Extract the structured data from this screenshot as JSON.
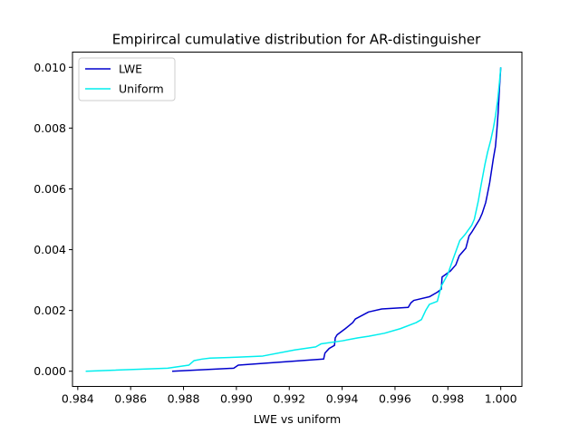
{
  "chart_data": {
    "type": "line",
    "title": "Empirircal cumulative distribution for AR-distinguisher",
    "xlabel": "LWE vs uniform",
    "ylabel": "",
    "xlim": [
      0.9838,
      1.0008
    ],
    "ylim": [
      -0.0005,
      0.0105
    ],
    "xticks": [
      "0.984",
      "0.986",
      "0.988",
      "0.990",
      "0.992",
      "0.994",
      "0.996",
      "0.998",
      "1.000"
    ],
    "xtick_values": [
      0.984,
      0.986,
      0.988,
      0.99,
      0.992,
      0.994,
      0.996,
      0.998,
      1.0
    ],
    "yticks": [
      "0.000",
      "0.002",
      "0.004",
      "0.006",
      "0.008",
      "0.010"
    ],
    "ytick_values": [
      0.0,
      0.002,
      0.004,
      0.006,
      0.008,
      0.01
    ],
    "grid": false,
    "legend_position": "top-left",
    "series": [
      {
        "name": "LWE",
        "color": "#0000cd",
        "x": [
          0.98757,
          0.9899,
          0.99007,
          0.9933,
          0.99335,
          0.99351,
          0.99371,
          0.99374,
          0.99381,
          0.99412,
          0.9944,
          0.9945,
          0.995,
          0.9955,
          0.9965,
          0.9966,
          0.99671,
          0.9973,
          0.9976,
          0.99775,
          0.99778,
          0.9981,
          0.9983,
          0.99843,
          0.99868,
          0.9988,
          0.99892,
          0.9992,
          0.9993,
          0.99943,
          0.9995,
          0.99958,
          0.99965,
          0.99972,
          0.9998,
          0.99985,
          0.9999,
          0.99995,
          1.0
        ],
        "y": [
          0.0,
          0.0001,
          0.0002,
          0.0004,
          0.0006,
          0.00075,
          0.00085,
          0.0011,
          0.0012,
          0.0014,
          0.0016,
          0.00172,
          0.00195,
          0.00205,
          0.0021,
          0.00225,
          0.00233,
          0.00245,
          0.0026,
          0.0027,
          0.0031,
          0.0033,
          0.0035,
          0.0038,
          0.00405,
          0.00445,
          0.0046,
          0.005,
          0.0052,
          0.00555,
          0.00585,
          0.0062,
          0.0066,
          0.007,
          0.0074,
          0.0079,
          0.0085,
          0.0093,
          0.01
        ]
      },
      {
        "name": "Uniform",
        "color": "#00eeee",
        "x": [
          0.9843,
          0.9874,
          0.9882,
          0.9884,
          0.9887,
          0.989,
          0.99,
          0.991,
          0.9922,
          0.993,
          0.9932,
          0.994,
          0.9946,
          0.995,
          0.9956,
          0.9962,
          0.9968,
          0.997,
          0.99716,
          0.9973,
          0.9976,
          0.99775,
          0.998,
          0.9982,
          0.99845,
          0.99865,
          0.9989,
          0.999,
          0.99915,
          0.99925,
          0.9994,
          0.9995,
          0.99962,
          0.99972,
          0.9998,
          0.99988,
          0.99995,
          1.0
        ],
        "y": [
          0.0,
          0.0001,
          0.0002,
          0.00035,
          0.0004,
          0.00043,
          0.00046,
          0.0005,
          0.0007,
          0.0008,
          0.0009,
          0.001,
          0.0011,
          0.00115,
          0.00125,
          0.0014,
          0.0016,
          0.0017,
          0.002,
          0.0022,
          0.0023,
          0.0028,
          0.0032,
          0.0037,
          0.0043,
          0.0045,
          0.0048,
          0.005,
          0.0056,
          0.0061,
          0.0068,
          0.0072,
          0.0076,
          0.008,
          0.0084,
          0.0089,
          0.0095,
          0.01
        ]
      }
    ]
  }
}
